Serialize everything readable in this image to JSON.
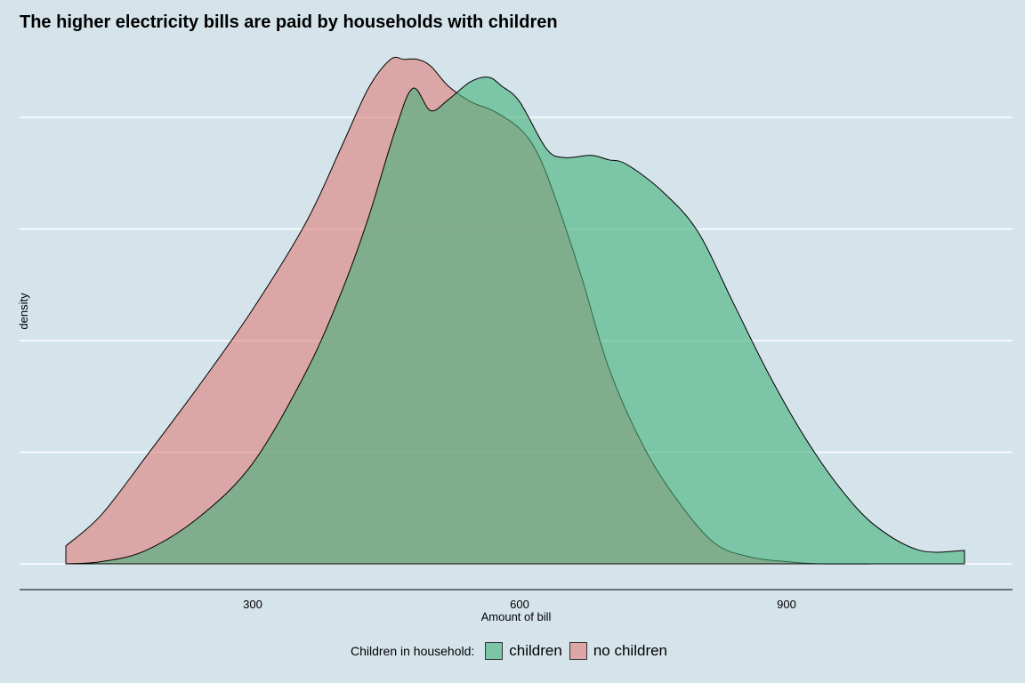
{
  "chart_data": {
    "type": "area",
    "title": "The higher electricity bills are paid by households with children",
    "xlabel": "Amount of bill",
    "ylabel": "density",
    "xlim": [
      40,
      1150
    ],
    "ylim": [
      0,
      0.0024
    ],
    "x_ticks": [
      300,
      600,
      900
    ],
    "y_gridlines": [
      0,
      0.0005,
      0.001,
      0.0015,
      0.002
    ],
    "grid": "horizontal",
    "legend": {
      "title": "Children in household:",
      "position": "bottom"
    },
    "series": [
      {
        "name": "no children",
        "color": "#e07e78",
        "x": [
          90,
          130,
          180,
          240,
          300,
          360,
          400,
          430,
          455,
          470,
          485,
          500,
          520,
          545,
          570,
          600,
          620,
          640,
          670,
          700,
          740,
          780,
          820,
          860,
          900,
          940,
          1000
        ],
        "y": [
          8e-05,
          0.00022,
          0.00048,
          0.0008,
          0.00114,
          0.00153,
          0.00187,
          0.00213,
          0.00226,
          0.00226,
          0.00226,
          0.00223,
          0.00214,
          0.00207,
          0.00203,
          0.00195,
          0.00184,
          0.00164,
          0.00128,
          0.00088,
          0.00052,
          0.00027,
          9e-05,
          3e-05,
          1e-05,
          0.0,
          0.0
        ]
      },
      {
        "name": "children",
        "color": "#43b07a",
        "x": [
          90,
          130,
          180,
          240,
          300,
          360,
          400,
          430,
          460,
          480,
          500,
          520,
          545,
          565,
          580,
          600,
          630,
          650,
          680,
          700,
          720,
          760,
          800,
          840,
          880,
          920,
          960,
          1000,
          1050,
          1100
        ],
        "y": [
          0.0,
          1e-05,
          6e-05,
          0.00021,
          0.00045,
          0.00086,
          0.00122,
          0.00155,
          0.00194,
          0.00213,
          0.00203,
          0.00208,
          0.00216,
          0.00218,
          0.00214,
          0.00207,
          0.00186,
          0.00182,
          0.00183,
          0.00181,
          0.00179,
          0.00167,
          0.00149,
          0.00117,
          0.00085,
          0.00057,
          0.00034,
          0.00017,
          6e-05,
          6e-05
        ]
      }
    ]
  }
}
